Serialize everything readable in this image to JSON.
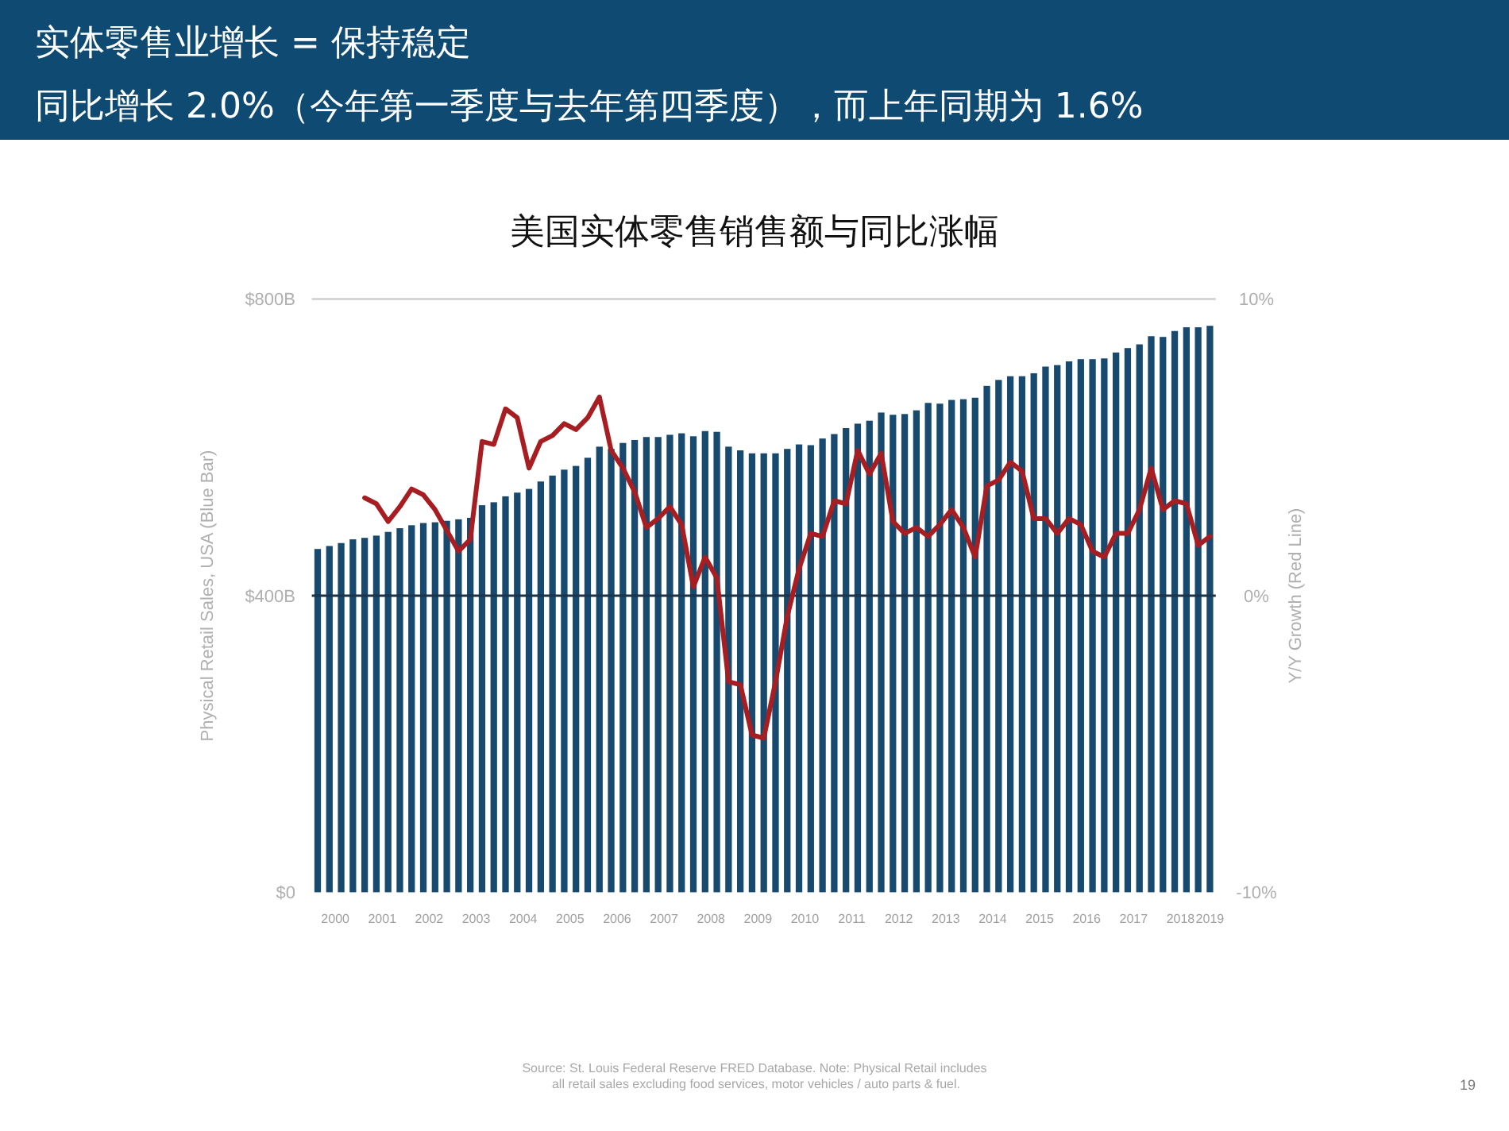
{
  "chart_data": {
    "type": "bar",
    "title": "实体零售业增长 = 保持稳定",
    "subtitle": "同比增长 2.0%（今年第一季度与去年第四季度），而上年同期为 1.6%",
    "annotations": [
      "美国实体零售销售额与同比涨幅",
      "Source: St. Louis Federal Reserve FRED Database.  Note: Physical Retail includes",
      "all retail sales excluding food services, motor vehicles / auto parts & fuel.",
      "19"
    ],
    "ylabel": "Physical Retail Sales, USA (Blue Bar)",
    "y2label": "Y/Y Growth (Red Line)",
    "x": [
      2000.125,
      2000.375,
      2000.625,
      2000.875,
      2001.125,
      2001.375,
      2001.625,
      2001.875,
      2002.125,
      2002.375,
      2002.625,
      2002.875,
      2003.125,
      2003.375,
      2003.625,
      2003.875,
      2004.125,
      2004.375,
      2004.625,
      2004.875,
      2005.125,
      2005.375,
      2005.625,
      2005.875,
      2006.125,
      2006.375,
      2006.625,
      2006.875,
      2007.125,
      2007.375,
      2007.625,
      2007.875,
      2008.125,
      2008.375,
      2008.625,
      2008.875,
      2009.125,
      2009.375,
      2009.625,
      2009.875,
      2010.125,
      2010.375,
      2010.625,
      2010.875,
      2011.125,
      2011.375,
      2011.625,
      2011.875,
      2012.125,
      2012.375,
      2012.625,
      2012.875,
      2013.125,
      2013.375,
      2013.625,
      2013.875,
      2014.125,
      2014.375,
      2014.625,
      2014.875,
      2015.125,
      2015.375,
      2015.625,
      2015.875,
      2016.125,
      2016.375,
      2016.625,
      2016.875,
      2017.125,
      2017.375,
      2017.625,
      2017.875,
      2018.125,
      2018.375,
      2018.625,
      2018.875,
      2019.125
    ],
    "xlim": [
      2000,
      2019.25
    ],
    "xticks": [
      {
        "value": 2000.5,
        "label": "2000"
      },
      {
        "value": 2001.5,
        "label": "2001"
      },
      {
        "value": 2002.5,
        "label": "2002"
      },
      {
        "value": 2003.5,
        "label": "2003"
      },
      {
        "value": 2004.5,
        "label": "2004"
      },
      {
        "value": 2005.5,
        "label": "2005"
      },
      {
        "value": 2006.5,
        "label": "2006"
      },
      {
        "value": 2007.5,
        "label": "2007"
      },
      {
        "value": 2008.5,
        "label": "2008"
      },
      {
        "value": 2009.5,
        "label": "2009"
      },
      {
        "value": 2010.5,
        "label": "2010"
      },
      {
        "value": 2011.5,
        "label": "2011"
      },
      {
        "value": 2012.5,
        "label": "2012"
      },
      {
        "value": 2013.5,
        "label": "2013"
      },
      {
        "value": 2014.5,
        "label": "2014"
      },
      {
        "value": 2015.5,
        "label": "2015"
      },
      {
        "value": 2016.5,
        "label": "2016"
      },
      {
        "value": 2017.5,
        "label": "2017"
      },
      {
        "value": 2018.5,
        "label": "2018"
      },
      {
        "value": 2019.125,
        "label": "2019"
      }
    ],
    "ylim": [
      0,
      800
    ],
    "yticks": [
      {
        "value": 0,
        "label": "$0"
      },
      {
        "value": 400,
        "label": "$400B"
      },
      {
        "value": 800,
        "label": "$800B"
      }
    ],
    "y2lim": [
      -10,
      10
    ],
    "y2ticks": [
      {
        "value": -10,
        "label": "-10%"
      },
      {
        "value": 0,
        "label": "0%"
      },
      {
        "value": 10,
        "label": "10%"
      }
    ],
    "series": [
      {
        "color": "#174a6e",
        "values": [
          463,
          467,
          471,
          476,
          478,
          481,
          486,
          491,
          495,
          498,
          499,
          501,
          503,
          505,
          522,
          526,
          534,
          539,
          544,
          554,
          562,
          570,
          575,
          586,
          601,
          598,
          606,
          610,
          614,
          614,
          617,
          619,
          615,
          622,
          621,
          601,
          596,
          592,
          592,
          592,
          598,
          604,
          603,
          612,
          618,
          626,
          632,
          636,
          647,
          644,
          645,
          650,
          660,
          659,
          664,
          665,
          667,
          683,
          691,
          696,
          696,
          700,
          709,
          711,
          716,
          719,
          719,
          720,
          728,
          734,
          739,
          750,
          749,
          757,
          762,
          762,
          764
        ]
      },
      {
        "type": "line",
        "axis": "y2",
        "color": "#a61e22",
        "values": [
          null,
          null,
          null,
          null,
          3.3,
          3.1,
          2.5,
          3.0,
          3.6,
          3.4,
          2.9,
          2.2,
          1.5,
          1.9,
          5.2,
          5.1,
          6.3,
          6.0,
          4.3,
          5.2,
          5.4,
          5.8,
          5.6,
          6.0,
          6.7,
          4.9,
          4.3,
          3.5,
          2.3,
          2.6,
          3.0,
          2.4,
          0.3,
          1.3,
          0.6,
          -2.9,
          -3.0,
          -4.7,
          -4.8,
          -2.9,
          -0.7,
          0.9,
          2.1,
          2.0,
          3.2,
          3.1,
          4.9,
          4.1,
          4.8,
          2.5,
          2.1,
          2.3,
          2.0,
          2.4,
          2.9,
          2.3,
          1.3,
          3.7,
          3.9,
          4.5,
          4.2,
          2.6,
          2.6,
          2.1,
          2.6,
          2.4,
          1.5,
          1.3,
          2.1,
          2.1,
          2.9,
          4.3,
          2.9,
          3.2,
          3.1,
          1.7,
          2.0
        ]
      }
    ],
    "ref_lines": [
      {
        "axis": "y",
        "value": 800,
        "color": "#d6d6d6"
      },
      {
        "axis": "y2",
        "value": 0,
        "color": "#1c3348"
      }
    ],
    "line_style": "solid"
  }
}
